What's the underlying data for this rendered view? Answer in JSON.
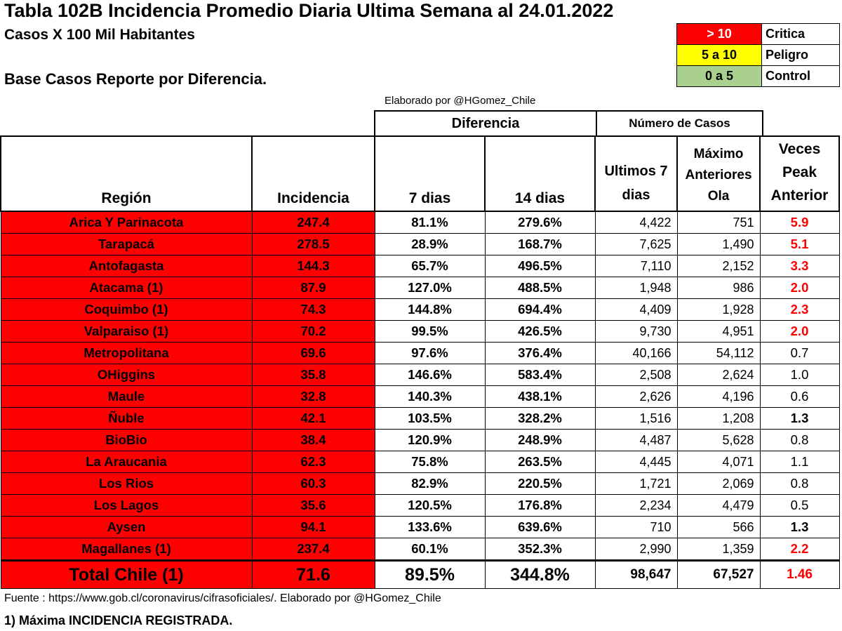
{
  "title": "Tabla 102B Incidencia Promedio Diaria Ultima Semana al 24.01.2022",
  "subtitle": "Casos X 100  Mil Habitantes",
  "base_text": "Base Casos Reporte por Diferencia.",
  "credit_top": "Elaborado por  @HGomez_Chile",
  "legend": [
    {
      "range": "> 10",
      "label": "Critica",
      "color": "#ff0000",
      "text_color": "#ffffff"
    },
    {
      "range": "5 a 10",
      "label": "Peligro",
      "color": "#ffff00",
      "text_color": "#000000"
    },
    {
      "range": "0 a 5",
      "label": "Control",
      "color": "#a9d08e",
      "text_color": "#000000"
    }
  ],
  "group_headers": {
    "diferencia": "Diferencia",
    "numero_casos": "Número de Casos"
  },
  "columns": {
    "region": "Región",
    "incidencia": "Incidencia",
    "d7": "7 dias",
    "d14": "14 dias",
    "ult7_line1": "Ultimos 7",
    "ult7_line2": "dias",
    "max_line1": "Máximo",
    "max_line2": "Anteriores",
    "max_line3": "Ola",
    "veces_line1": "Veces",
    "veces_line2": "Peak",
    "veces_line3": "Anterior"
  },
  "colors": {
    "critical": "#ff0000",
    "ratio_high": "#ff0000",
    "ratio_normal": "#000000"
  },
  "chart_data": {
    "type": "table",
    "title": "Tabla 102B Incidencia Promedio Diaria Ultima Semana al 24.01.2022",
    "rows": [
      {
        "region": "Arica Y Parinacota",
        "incidencia": "247.4",
        "d7": "81.1%",
        "d14": "279.6%",
        "ult7": "4,422",
        "max": "751",
        "veces": "5.9",
        "level": "high"
      },
      {
        "region": "Tarapacá",
        "incidencia": "278.5",
        "d7": "28.9%",
        "d14": "168.7%",
        "ult7": "7,625",
        "max": "1,490",
        "veces": "5.1",
        "level": "high"
      },
      {
        "region": "Antofagasta",
        "incidencia": "144.3",
        "d7": "65.7%",
        "d14": "496.5%",
        "ult7": "7,110",
        "max": "2,152",
        "veces": "3.3",
        "level": "high"
      },
      {
        "region": "Atacama (1)",
        "incidencia": "87.9",
        "d7": "127.0%",
        "d14": "488.5%",
        "ult7": "1,948",
        "max": "986",
        "veces": "2.0",
        "level": "high"
      },
      {
        "region": "Coquimbo (1)",
        "incidencia": "74.3",
        "d7": "144.8%",
        "d14": "694.4%",
        "ult7": "4,409",
        "max": "1,928",
        "veces": "2.3",
        "level": "high"
      },
      {
        "region": "Valparaiso (1)",
        "incidencia": "70.2",
        "d7": "99.5%",
        "d14": "426.5%",
        "ult7": "9,730",
        "max": "4,951",
        "veces": "2.0",
        "level": "high"
      },
      {
        "region": "Metropolitana",
        "incidencia": "69.6",
        "d7": "97.6%",
        "d14": "376.4%",
        "ult7": "40,166",
        "max": "54,112",
        "veces": "0.7",
        "level": "normal"
      },
      {
        "region": "OHiggins",
        "incidencia": "35.8",
        "d7": "146.6%",
        "d14": "583.4%",
        "ult7": "2,508",
        "max": "2,624",
        "veces": "1.0",
        "level": "normal"
      },
      {
        "region": "Maule",
        "incidencia": "32.8",
        "d7": "140.3%",
        "d14": "438.1%",
        "ult7": "2,626",
        "max": "4,196",
        "veces": "0.6",
        "level": "normal"
      },
      {
        "region": "Ñuble",
        "incidencia": "42.1",
        "d7": "103.5%",
        "d14": "328.2%",
        "ult7": "1,516",
        "max": "1,208",
        "veces": "1.3",
        "level": "bold"
      },
      {
        "region": "BioBio",
        "incidencia": "38.4",
        "d7": "120.9%",
        "d14": "248.9%",
        "ult7": "4,487",
        "max": "5,628",
        "veces": "0.8",
        "level": "normal"
      },
      {
        "region": "La Araucania",
        "incidencia": "62.3",
        "d7": "75.8%",
        "d14": "263.5%",
        "ult7": "4,445",
        "max": "4,071",
        "veces": "1.1",
        "level": "normal"
      },
      {
        "region": "Los Rios",
        "incidencia": "60.3",
        "d7": "82.9%",
        "d14": "220.5%",
        "ult7": "1,721",
        "max": "2,069",
        "veces": "0.8",
        "level": "normal"
      },
      {
        "region": "Los Lagos",
        "incidencia": "35.6",
        "d7": "120.5%",
        "d14": "176.8%",
        "ult7": "2,234",
        "max": "4,479",
        "veces": "0.5",
        "level": "normal"
      },
      {
        "region": "Aysen",
        "incidencia": "94.1",
        "d7": "133.6%",
        "d14": "639.6%",
        "ult7": "710",
        "max": "566",
        "veces": "1.3",
        "level": "bold"
      },
      {
        "region": "Magallanes (1)",
        "incidencia": "237.4",
        "d7": "60.1%",
        "d14": "352.3%",
        "ult7": "2,990",
        "max": "1,359",
        "veces": "2.2",
        "level": "high"
      }
    ],
    "total": {
      "region": "Total Chile (1)",
      "incidencia": "71.6",
      "d7": "89.5%",
      "d14": "344.8%",
      "ult7": "98,647",
      "max": "67,527",
      "veces": "1.46",
      "level": "high"
    }
  },
  "footer": "Fuente : https://www.gob.cl/coronavirus/cifrasoficiales/.    Elaborado por  @HGomez_Chile",
  "note": "1) Máxima INCIDENCIA REGISTRADA."
}
